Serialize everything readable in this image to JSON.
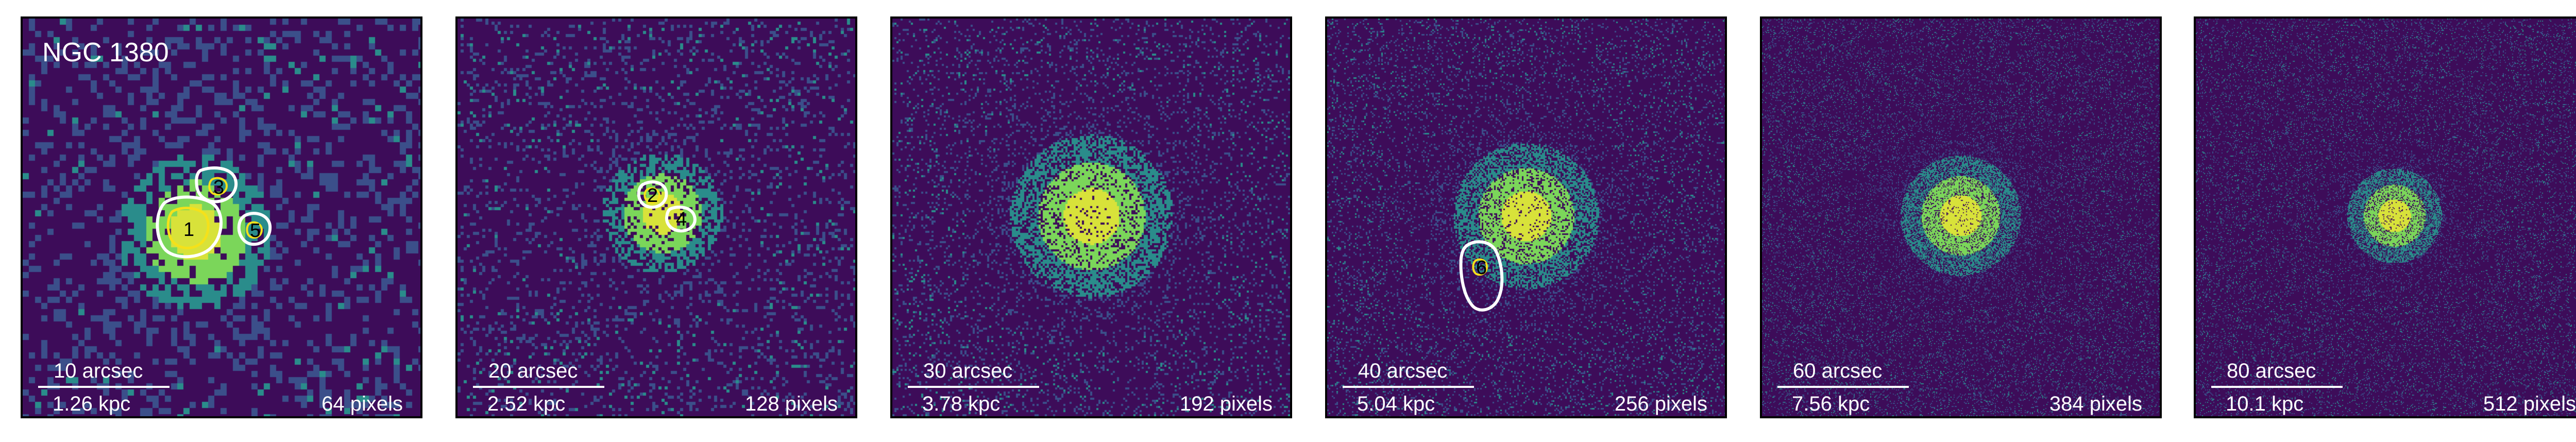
{
  "figure": {
    "galaxy_name": "NGC 1380",
    "colors": {
      "background": "#3d0c59",
      "noise_low": "#3b4f8a",
      "noise_mid": "#2a8c8b",
      "core": "#7bd65a",
      "core_peak": "#d8e23a",
      "contour_outer": "#ffffff",
      "contour_inner": "#f5e11a"
    },
    "panels": [
      {
        "arcsec": "10 arcsec",
        "kpc": "1.26 kpc",
        "pixels": "64 pixels",
        "scale_fraction": 0.33
      },
      {
        "arcsec": "20 arcsec",
        "kpc": "2.52 kpc",
        "pixels": "128 pixels",
        "scale_fraction": 0.33
      },
      {
        "arcsec": "30 arcsec",
        "kpc": "3.78 kpc",
        "pixels": "192 pixels",
        "scale_fraction": 0.33
      },
      {
        "arcsec": "40 arcsec",
        "kpc": "5.04 kpc",
        "pixels": "256 pixels",
        "scale_fraction": 0.33
      },
      {
        "arcsec": "60 arcsec",
        "kpc": "7.56 kpc",
        "pixels": "384 pixels",
        "scale_fraction": 0.33
      },
      {
        "arcsec": "80 arcsec",
        "kpc": "10.1 kpc",
        "pixels": "512 pixels",
        "scale_fraction": 0.33
      }
    ],
    "sources": [
      {
        "label": "1",
        "panel": 1
      },
      {
        "label": "2",
        "panel": 2
      },
      {
        "label": "3",
        "panel": 1
      },
      {
        "label": "4",
        "panel": 2
      },
      {
        "label": "5",
        "panel": 1
      },
      {
        "label": "6",
        "panel": 4
      }
    ]
  }
}
